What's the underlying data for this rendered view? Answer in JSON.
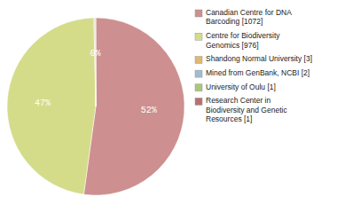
{
  "chart_data": {
    "type": "pie",
    "categories": [
      "Canadian Centre for DNA\nBarcoding [1072]",
      "Centre for Biodiversity\nGenomics [976]",
      "Shandong Normal University [3]",
      "Mined from GenBank, NCBI [2]",
      "University of Oulu [1]",
      "Research Center in\nBiodiversity and Genetic\nResources [1]"
    ],
    "values": [
      1072,
      976,
      3,
      2,
      1,
      1
    ],
    "value_labels": [
      "52%",
      "47%",
      null,
      "0%",
      null,
      null
    ],
    "colors": [
      "#cd8f8f",
      "#d4dc8a",
      "#e0b870",
      "#a0bcd0",
      "#a8c878",
      "#b87070"
    ],
    "data_labels": true,
    "legend": "right"
  }
}
